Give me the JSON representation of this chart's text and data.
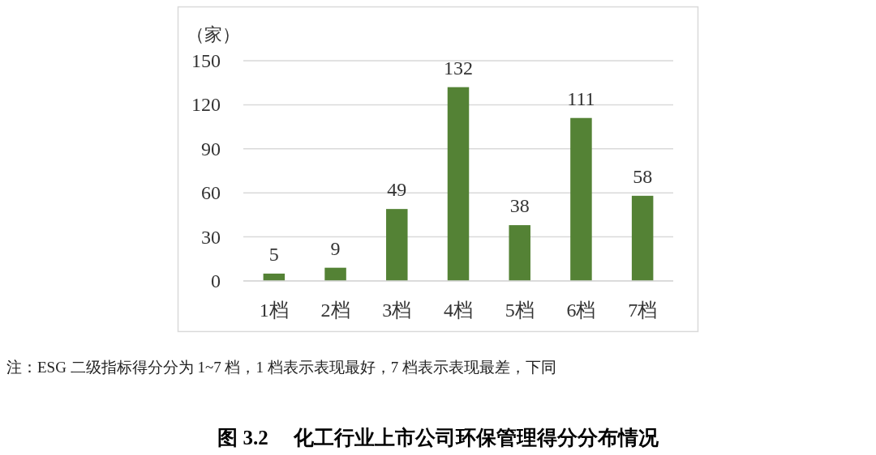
{
  "chart_data": {
    "type": "bar",
    "title": "图 3.2     化工行业上市公司环保管理得分分布情况",
    "ylabel": "（家）",
    "categories": [
      "1档",
      "2档",
      "3档",
      "4档",
      "5档",
      "6档",
      "7档"
    ],
    "values": [
      5,
      9,
      49,
      132,
      38,
      111,
      58
    ],
    "color": "#548235",
    "ylim": [
      0,
      150
    ],
    "yticks": [
      0,
      30,
      60,
      90,
      120,
      150
    ],
    "grid": "y",
    "data_labels": true,
    "annotations": [
      "注：ESG 二级指标得分分为 1~7 档，1 档表示表现最好，7 档表示表现最差，下同"
    ]
  }
}
